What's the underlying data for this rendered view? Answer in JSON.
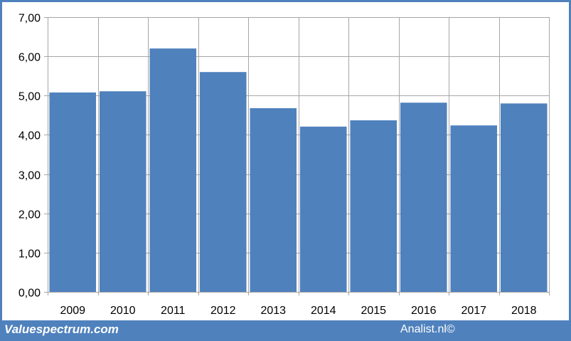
{
  "chart_data": {
    "type": "bar",
    "categories": [
      "2009",
      "2010",
      "2011",
      "2012",
      "2013",
      "2014",
      "2015",
      "2016",
      "2017",
      "2018"
    ],
    "values": [
      5.08,
      5.11,
      6.2,
      5.6,
      4.68,
      4.21,
      4.37,
      4.82,
      4.24,
      4.8
    ],
    "ylim": [
      0,
      7
    ],
    "yticks": [
      "0,00",
      "1,00",
      "2,00",
      "3,00",
      "4,00",
      "5,00",
      "6,00",
      "7,00"
    ],
    "grid": true,
    "legend": "none",
    "bar_color": "#4f81bd",
    "title": "",
    "xlabel": "",
    "ylabel": ""
  },
  "footer": {
    "left": "Valuespectrum.com",
    "right": "Analist.nl©"
  },
  "colors": {
    "frame": "#4f81bd",
    "grid": "#a6a6a6"
  }
}
